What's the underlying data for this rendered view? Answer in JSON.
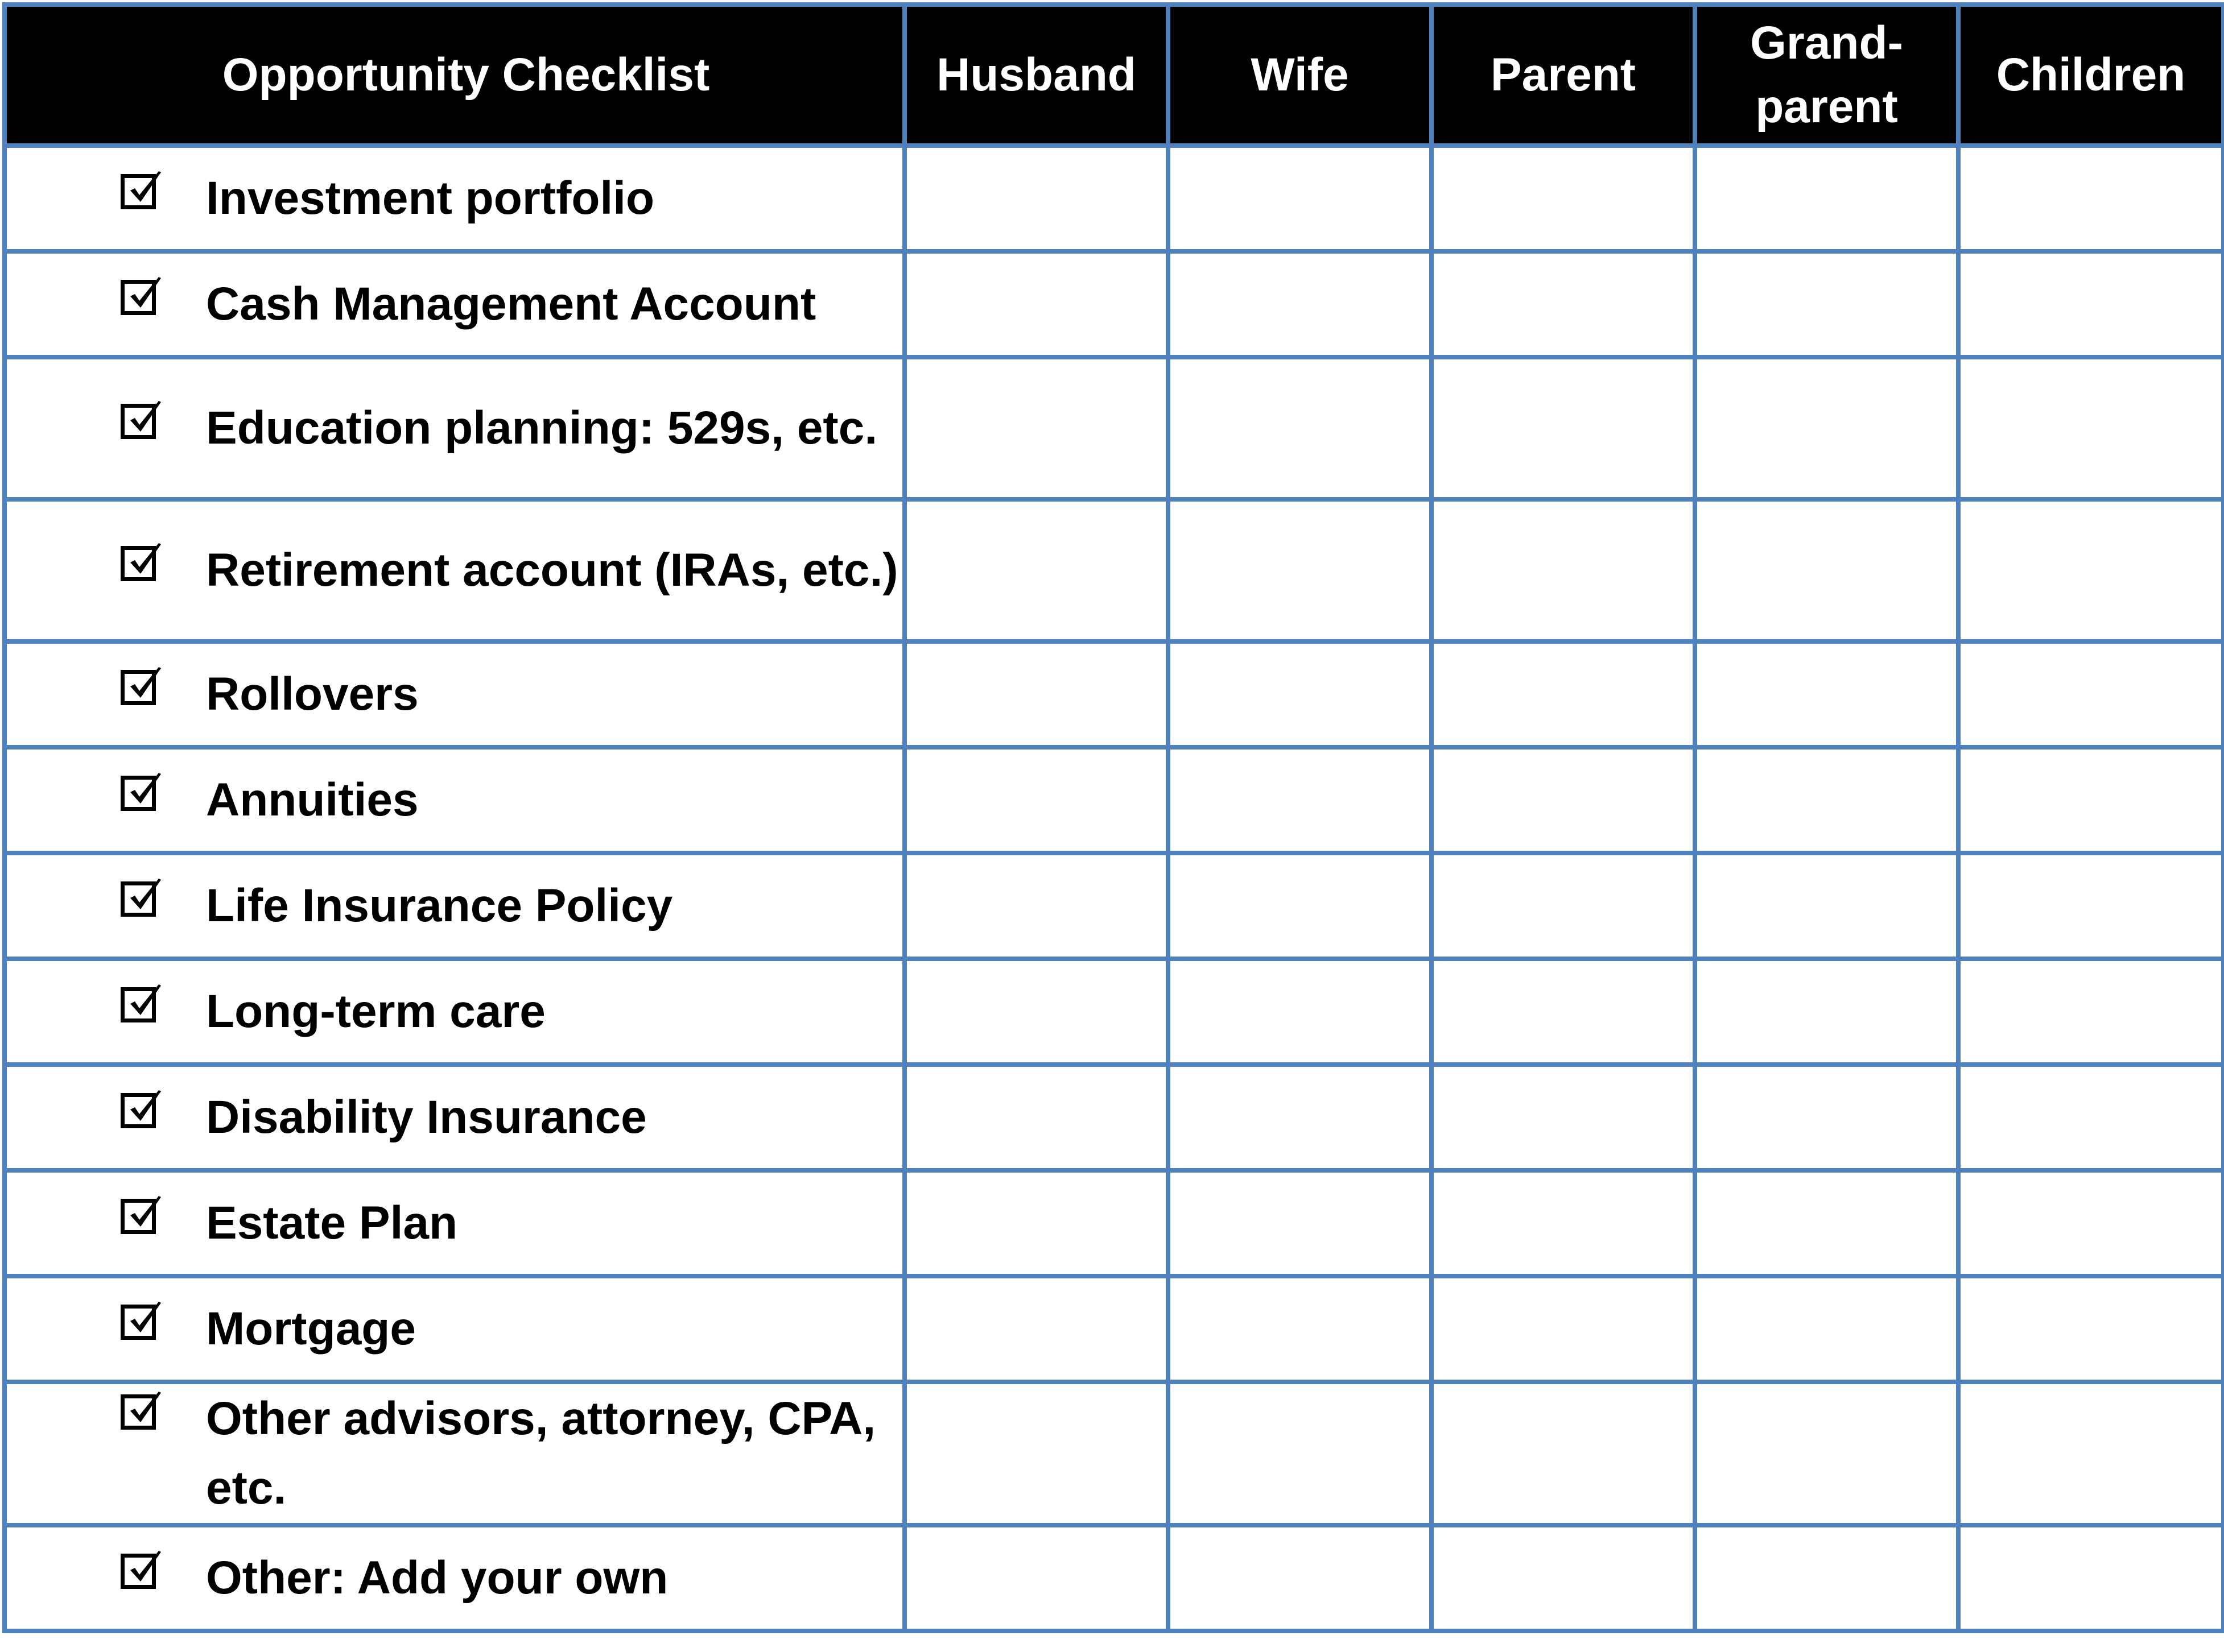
{
  "header": [
    "Opportunity Checklist",
    "Husband",
    "Wife",
    "Parent",
    "Grand-\nparent",
    "Children"
  ],
  "items": [
    {
      "label": "Investment portfolio",
      "checked": true
    },
    {
      "label": "Cash Management Account",
      "checked": true
    },
    {
      "label": "Education planning: 529s, etc.",
      "checked": true
    },
    {
      "label": "Retirement account (IRAs, etc.)",
      "checked": true
    },
    {
      "label": "Rollovers",
      "checked": true
    },
    {
      "label": "Annuities",
      "checked": true
    },
    {
      "label": "Life Insurance Policy",
      "checked": true
    },
    {
      "label": "Long-term care",
      "checked": true
    },
    {
      "label": "Disability Insurance",
      "checked": true
    },
    {
      "label": "Estate Plan",
      "checked": true
    },
    {
      "label": "Mortgage",
      "checked": true
    },
    {
      "label": "Other advisors, attorney, CPA, etc.",
      "checked": true
    },
    {
      "label": "Other: Add your own",
      "checked": true
    }
  ],
  "colors": {
    "border": "#4F81BD",
    "header_bg": "#000000",
    "header_text": "#FFFFFF"
  }
}
